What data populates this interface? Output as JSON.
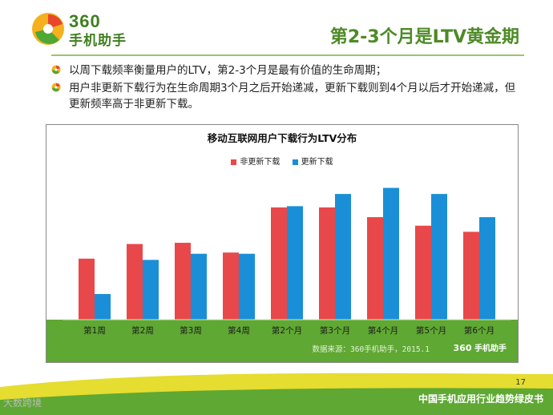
{
  "brand": {
    "number": "360",
    "name": "手机助手"
  },
  "slide": {
    "title": "第2-3个月是LTV黄金期",
    "bullets": [
      "以周下载频率衡量用户的LTV，第2-3个月是最有价值的生命周期；",
      "用户非更新下载行为在生命周期3个月之后开始递减，更新下载则到4个月以后才开始递减，但更新频率高于非更新下载。"
    ],
    "page_number": "17",
    "footer_right": "中国手机应用行业趋势绿皮书",
    "footer_left": "大数跨境"
  },
  "chart_data": {
    "type": "bar",
    "title": "移动互联网用户下载行为LTV分布",
    "categories": [
      "第1周",
      "第2周",
      "第3周",
      "第4周",
      "第2个月",
      "第3个月",
      "第4个月",
      "第5个月",
      "第6个月"
    ],
    "series": [
      {
        "name": "非更新下载",
        "color": "#e8484a",
        "values": [
          50,
          62,
          63,
          55,
          92,
          92,
          84,
          77,
          72
        ]
      },
      {
        "name": "更新下载",
        "color": "#1a8fd8",
        "values": [
          21,
          49,
          54,
          54,
          93,
          103,
          108,
          103,
          84
        ]
      }
    ],
    "ylim": [
      0,
      130
    ],
    "xlabel": "",
    "ylabel": "",
    "source": "数据来源：360手机助手，2015.1",
    "legend_position": "top"
  },
  "colors": {
    "brand_green": "#5fa833",
    "title_green": "#4d8a26",
    "accent_yellow": "#e2d91a"
  }
}
